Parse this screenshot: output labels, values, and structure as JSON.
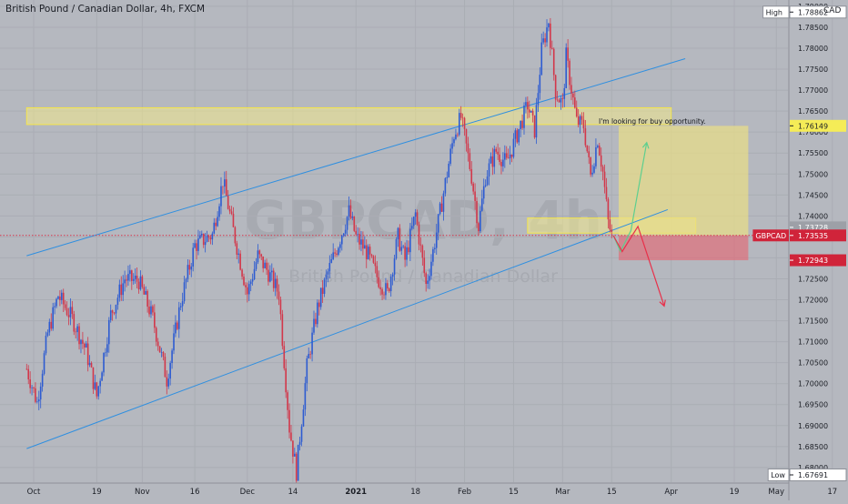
{
  "chart_data": {
    "type": "candlestick",
    "title": "British Pound / Canadian Dollar, 4h, FXCM",
    "currency": "CAD",
    "ylim": [
      1.6765,
      1.7915
    ],
    "y_ticks": [
      "1.79000",
      "1.78500",
      "1.78000",
      "1.77500",
      "1.77000",
      "1.76500",
      "1.76000",
      "1.75500",
      "1.75000",
      "1.74500",
      "1.74000",
      "1.73500",
      "1.73000",
      "1.72500",
      "1.72000",
      "1.71500",
      "1.71000",
      "1.70500",
      "1.70000",
      "1.69500",
      "1.69000",
      "1.68500",
      "1.68000"
    ],
    "x_ticks": [
      {
        "label": "Oct",
        "day": 0,
        "bold": false
      },
      {
        "label": "19",
        "day": 18,
        "bold": false
      },
      {
        "label": "Nov",
        "day": 31,
        "bold": false
      },
      {
        "label": "16",
        "day": 46,
        "bold": false
      },
      {
        "label": "Dec",
        "day": 61,
        "bold": false
      },
      {
        "label": "14",
        "day": 74,
        "bold": false
      },
      {
        "label": "2021",
        "day": 92,
        "bold": true
      },
      {
        "label": "18",
        "day": 109,
        "bold": false
      },
      {
        "label": "Feb",
        "day": 123,
        "bold": false
      },
      {
        "label": "15",
        "day": 137,
        "bold": false
      },
      {
        "label": "Mar",
        "day": 151,
        "bold": false
      },
      {
        "label": "15",
        "day": 165,
        "bold": false
      },
      {
        "label": "Apr",
        "day": 182,
        "bold": false
      },
      {
        "label": "19",
        "day": 200,
        "bold": false
      },
      {
        "label": "May",
        "day": 212,
        "bold": false
      },
      {
        "label": "17",
        "day": 228,
        "bold": false
      }
    ],
    "price_path": [
      [
        -2,
        1.7035
      ],
      [
        1,
        1.6955
      ],
      [
        4,
        1.712
      ],
      [
        7,
        1.721
      ],
      [
        11,
        1.7155
      ],
      [
        15,
        1.7078
      ],
      [
        18,
        1.697
      ],
      [
        22,
        1.7165
      ],
      [
        26,
        1.725
      ],
      [
        30,
        1.7245
      ],
      [
        34,
        1.7155
      ],
      [
        38,
        1.701
      ],
      [
        42,
        1.7195
      ],
      [
        46,
        1.733
      ],
      [
        51,
        1.7355
      ],
      [
        54,
        1.7485
      ],
      [
        57,
        1.7365
      ],
      [
        61,
        1.7215
      ],
      [
        64,
        1.7305
      ],
      [
        67,
        1.7265
      ],
      [
        70,
        1.7215
      ],
      [
        73,
        1.6895
      ],
      [
        75,
        1.679
      ],
      [
        78,
        1.704
      ],
      [
        81,
        1.718
      ],
      [
        84,
        1.7265
      ],
      [
        87,
        1.7335
      ],
      [
        90,
        1.741
      ],
      [
        92,
        1.735
      ],
      [
        95,
        1.7315
      ],
      [
        98,
        1.7255
      ],
      [
        101,
        1.7215
      ],
      [
        104,
        1.735
      ],
      [
        106,
        1.7295
      ],
      [
        109,
        1.7405
      ],
      [
        112,
        1.7235
      ],
      [
        114,
        1.7315
      ],
      [
        117,
        1.7455
      ],
      [
        120,
        1.7595
      ],
      [
        122,
        1.7635
      ],
      [
        125,
        1.7495
      ],
      [
        127,
        1.7375
      ],
      [
        129,
        1.7495
      ],
      [
        132,
        1.7555
      ],
      [
        135,
        1.7525
      ],
      [
        138,
        1.7595
      ],
      [
        141,
        1.7665
      ],
      [
        143,
        1.7605
      ],
      [
        145,
        1.7795
      ],
      [
        147,
        1.7865
      ],
      [
        149,
        1.7695
      ],
      [
        151,
        1.7665
      ],
      [
        152,
        1.778
      ],
      [
        155,
        1.7625
      ],
      [
        157,
        1.7615
      ],
      [
        159,
        1.7495
      ],
      [
        161,
        1.7585
      ],
      [
        162.5,
        1.7505
      ],
      [
        164,
        1.7385
      ],
      [
        165,
        1.7353
      ]
    ],
    "channel_lines": [
      {
        "from": [
          -2,
          1.7305
        ],
        "to": [
          186,
          1.7775
        ]
      },
      {
        "from": [
          -2,
          1.6845
        ],
        "to": [
          181,
          1.7415
        ]
      }
    ],
    "zones": [
      {
        "kind": "resistance",
        "x0": -2,
        "x1": 182,
        "y0": 1.7618,
        "y1": 1.7658
      },
      {
        "kind": "support",
        "x0": 141,
        "x1": 189,
        "y0": 1.7359,
        "y1": 1.7395
      },
      {
        "kind": "target",
        "x0": 167,
        "x1": 204,
        "y0": 1.73535,
        "y1": 1.76149
      },
      {
        "kind": "stop",
        "x0": 167,
        "x1": 204,
        "y0": 1.72943,
        "y1": 1.73535
      }
    ],
    "projection_arrows": [
      {
        "color": "#5ccf8f",
        "points": [
          [
            165.5,
            1.7353
          ],
          [
            167.5,
            1.7315
          ],
          [
            170.5,
            1.7365
          ],
          [
            175,
            1.7575
          ]
        ]
      },
      {
        "color": "#e8304a",
        "points": [
          [
            165.5,
            1.7353
          ],
          [
            168,
            1.7315
          ],
          [
            172.5,
            1.7375
          ],
          [
            180,
            1.7185
          ]
        ]
      }
    ],
    "current_price_line": 1.73535,
    "annotation": "I'm looking for buy opportunity.",
    "watermark": {
      "symbol": "GBPCAD, 4h",
      "subtitle": "British Pound / Canadian Dollar"
    },
    "price_labels": [
      {
        "text": "High",
        "value": "1.78862",
        "price": 1.78862,
        "kind": "high"
      },
      {
        "text": "",
        "value": "1.76149",
        "price": 1.76149,
        "kind": "yellow"
      },
      {
        "text": "",
        "value": "1.73728",
        "price": 1.73728,
        "kind": "gray"
      },
      {
        "text": "GBPCAD",
        "value": "1.73535",
        "price": 1.73535,
        "kind": "red"
      },
      {
        "text": "",
        "value": "1.72943",
        "price": 1.72943,
        "kind": "red"
      },
      {
        "text": "Low",
        "value": "1.67691",
        "price": 1.67691,
        "kind": "low"
      }
    ]
  }
}
